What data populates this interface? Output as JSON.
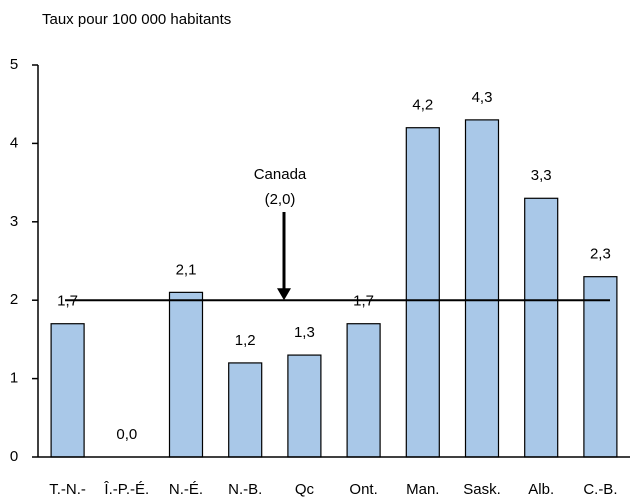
{
  "chart_data": {
    "type": "bar",
    "y_axis_label": "Taux pour 100 000 habitants",
    "categories": [
      "T.-N.-",
      "Î.-P.-É.",
      "N.-É.",
      "N.-B.",
      "Qc",
      "Ont.",
      "Man.",
      "Sask.",
      "Alb.",
      "C.-B."
    ],
    "values": [
      1.7,
      0.0,
      2.1,
      1.2,
      1.3,
      1.7,
      4.2,
      4.3,
      3.3,
      2.3
    ],
    "value_labels": [
      "1,7",
      "0,0",
      "2,1",
      "1,2",
      "1,3",
      "1,7",
      "4,2",
      "4,3",
      "3,3",
      "2,3"
    ],
    "color": "#a9c8e8",
    "ylim": [
      0,
      5
    ],
    "yticks": [
      0,
      1,
      2,
      3,
      4,
      5
    ],
    "reference": {
      "value": 2.0,
      "label": "Canada",
      "value_label": "(2,0)"
    }
  }
}
